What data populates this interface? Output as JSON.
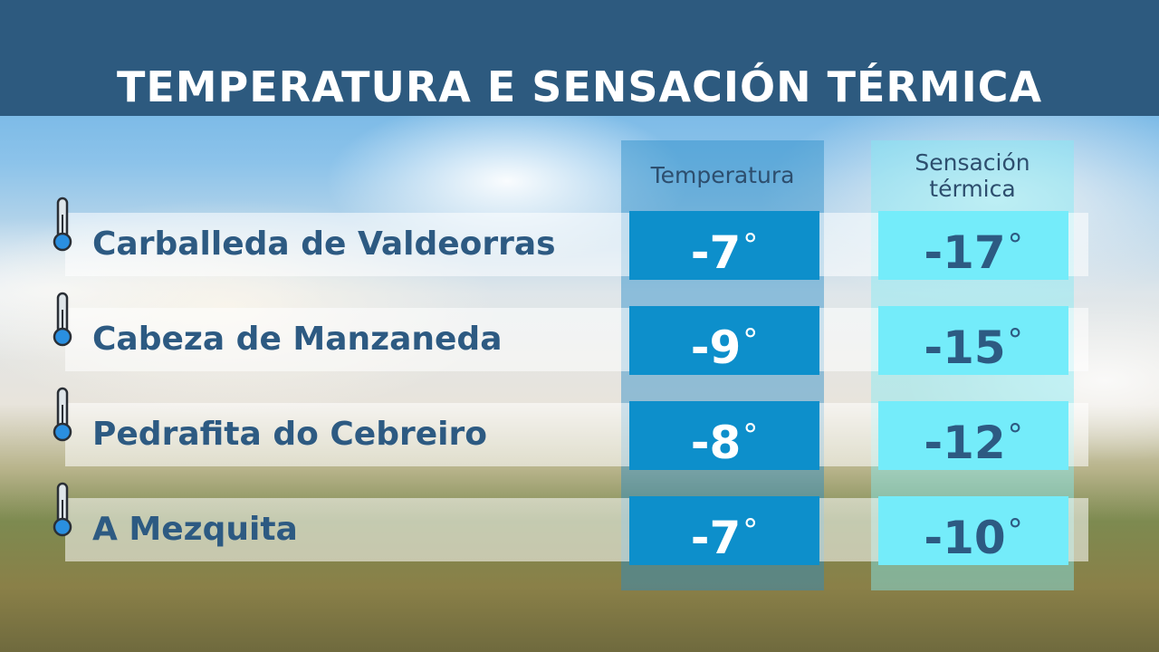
{
  "title": "TEMPERATURA E SENSACIÓN TÉRMICA",
  "columns": {
    "temperature": "Temperatura",
    "feels_like": "Sensación térmica"
  },
  "degree_symbol": "°",
  "colors": {
    "header": "#2d5a7f",
    "temperature_box": "#0d8fcb",
    "feels_like_box": "#74ecfa",
    "text": "#2d5a82"
  },
  "icon": "thermometer-icon",
  "rows": [
    {
      "place": "Carballeda de Valdeorras",
      "temperature": "-7",
      "feels_like": "-17"
    },
    {
      "place": "Cabeza de Manzaneda",
      "temperature": "-9",
      "feels_like": "-15"
    },
    {
      "place": "Pedrafita do Cebreiro",
      "temperature": "-8",
      "feels_like": "-12"
    },
    {
      "place": "A Mezquita",
      "temperature": "-7",
      "feels_like": "-10"
    }
  ]
}
